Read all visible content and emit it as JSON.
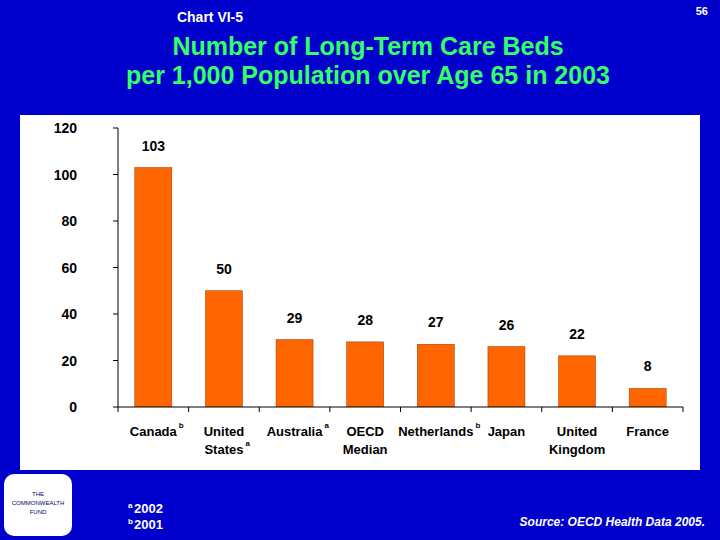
{
  "chart_label": "Chart VI-5",
  "page": "56",
  "logo": "THE COMMONWEALTH FUND",
  "source": "Source: OECD Health Data 2005.",
  "notes": [
    {
      "mark": "a",
      "text": "2002"
    },
    {
      "mark": "b",
      "text": "2001"
    }
  ],
  "chart_data": {
    "type": "bar",
    "title": [
      "Number of Long-Term Care Beds",
      "per 1,000 Population over Age 65 in 2003"
    ],
    "categories": [
      "Canada",
      "United States",
      "Australia",
      "OECD Median",
      "Netherlands",
      "Japan",
      "United Kingdom",
      "France"
    ],
    "category_notes": [
      "b",
      "a",
      "a",
      null,
      "b",
      null,
      null,
      null
    ],
    "values": [
      103,
      50,
      29,
      28,
      27,
      26,
      22,
      8
    ],
    "color": "#FF6600",
    "ylim": [
      0,
      120
    ],
    "yticks": [
      0,
      20,
      40,
      60,
      80,
      100,
      120
    ],
    "grid": false,
    "data_labels": true
  }
}
